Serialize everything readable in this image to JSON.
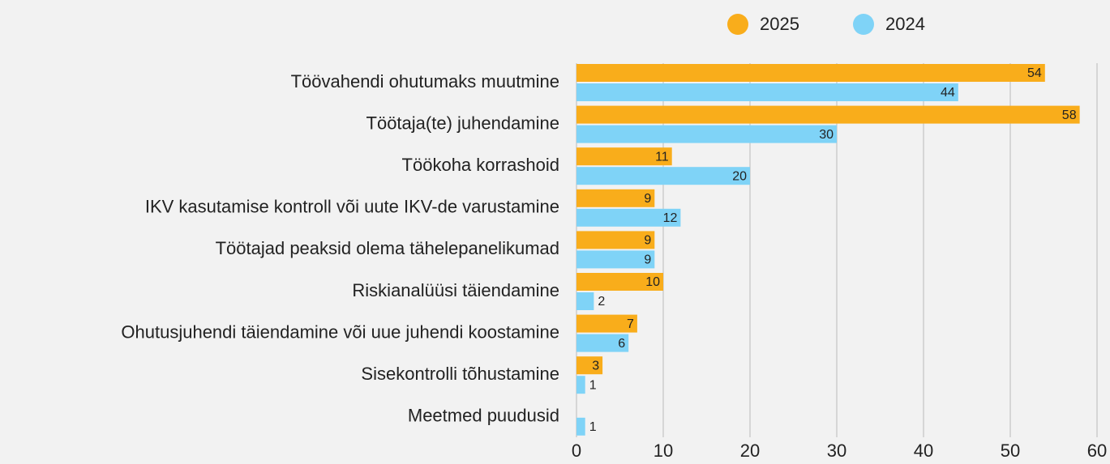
{
  "chart_data": {
    "type": "bar",
    "orientation": "horizontal",
    "categories": [
      "Töövahendi ohutumaks muutmine",
      "Töötaja(te) juhendamine",
      "Töökoha korrashoid",
      "IKV kasutamise kontroll või uute IKV-de varustamine",
      "Töötajad peaksid olema tähelepanelikumad",
      "Riskianalüüsi täiendamine",
      "Ohutusjuhendi täiendamine või uue juhendi koostamine",
      "Sisekontrolli tõhustamine",
      "Meetmed puudusid"
    ],
    "series": [
      {
        "name": "2025",
        "color": "#f9ad1b",
        "values": [
          54,
          58,
          11,
          9,
          9,
          10,
          7,
          3,
          null
        ]
      },
      {
        "name": "2024",
        "color": "#7fd3f7",
        "values": [
          44,
          30,
          20,
          12,
          9,
          2,
          6,
          1,
          1
        ]
      }
    ],
    "xlim": [
      0,
      60
    ],
    "xticks": [
      0,
      10,
      20,
      30,
      40,
      50,
      60
    ],
    "grid": true,
    "legend": "top"
  }
}
